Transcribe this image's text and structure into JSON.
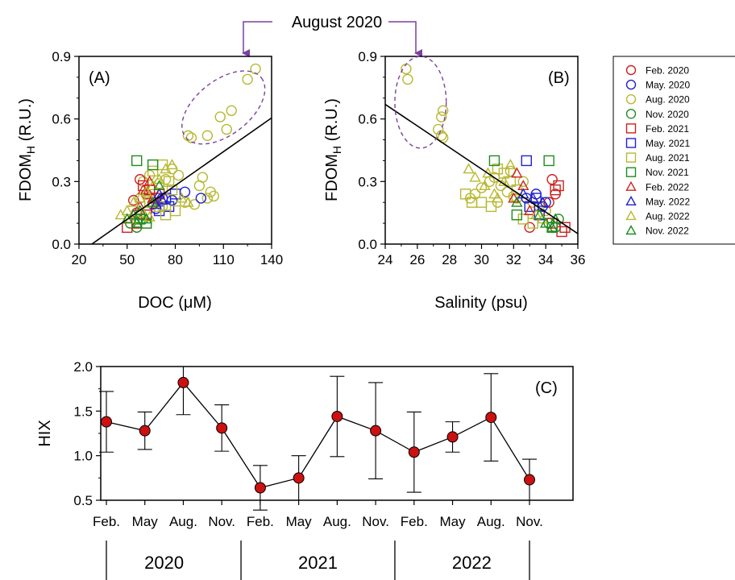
{
  "annotation": {
    "text": "August 2020",
    "color": "#7B3FA0"
  },
  "legend": [
    {
      "label": "Feb. 2020",
      "marker": "circle",
      "color": "#CC2222"
    },
    {
      "label": "May. 2020",
      "marker": "circle",
      "color": "#2222CC"
    },
    {
      "label": "Aug. 2020",
      "marker": "circle",
      "color": "#B8B832"
    },
    {
      "label": "Nov. 2020",
      "marker": "circle",
      "color": "#1E8C1E"
    },
    {
      "label": "Feb. 2021",
      "marker": "square",
      "color": "#CC2222"
    },
    {
      "label": "May. 2021",
      "marker": "square",
      "color": "#2222CC"
    },
    {
      "label": "Aug. 2021",
      "marker": "square",
      "color": "#B8B832"
    },
    {
      "label": "Nov. 2021",
      "marker": "square",
      "color": "#1E8C1E"
    },
    {
      "label": "Feb. 2022",
      "marker": "triangle",
      "color": "#CC2222"
    },
    {
      "label": "May. 2022",
      "marker": "triangle",
      "color": "#2222CC"
    },
    {
      "label": "Aug. 2022",
      "marker": "triangle",
      "color": "#B8B832"
    },
    {
      "label": "Nov. 2022",
      "marker": "triangle",
      "color": "#1E8C1E"
    }
  ],
  "chart_data": [
    {
      "panel": "(A)",
      "type": "scatter",
      "xlabel": "DOC (μM)",
      "ylabel_main": "FDOM",
      "ylabel_sub": "H",
      "ylabel_tail": " (R.U.)",
      "xlim": [
        20,
        140
      ],
      "ylim": [
        0,
        0.9
      ],
      "xticks": [
        20,
        50,
        80,
        110,
        140
      ],
      "yticks": [
        "0.0",
        "0.3",
        "0.6",
        "0.9"
      ],
      "regression": {
        "x": [
          28,
          140
        ],
        "y": [
          0.0,
          0.605
        ]
      },
      "highlight_ellipse": {
        "cx": 110,
        "cy": 0.655,
        "rx": 30,
        "ry": 0.13,
        "angle_deg": -38
      },
      "series": [
        {
          "label": "Aug. 2020",
          "marker": "circle",
          "color": "#B8B832",
          "points": [
            [
              130,
              0.84
            ],
            [
              125,
              0.79
            ],
            [
              115,
              0.64
            ],
            [
              108,
              0.61
            ],
            [
              112,
              0.55
            ],
            [
              100,
              0.52
            ],
            [
              88,
              0.52
            ],
            [
              90,
              0.51
            ],
            [
              97,
              0.32
            ],
            [
              95,
              0.28
            ],
            [
              102,
              0.25
            ],
            [
              104,
              0.23
            ],
            [
              100,
              0.22
            ],
            [
              82,
              0.33
            ],
            [
              78,
              0.36
            ],
            [
              74,
              0.31
            ],
            [
              70,
              0.29
            ],
            [
              66,
              0.26
            ],
            [
              62,
              0.24
            ],
            [
              86,
              0.2
            ],
            [
              92,
              0.19
            ],
            [
              72,
              0.18
            ],
            [
              68,
              0.2
            ],
            [
              58,
              0.22
            ],
            [
              60,
              0.3
            ],
            [
              64,
              0.33
            ]
          ]
        },
        {
          "label": "Feb. 2020",
          "marker": "circle",
          "color": "#CC2222",
          "points": [
            [
              58,
              0.31
            ],
            [
              54,
              0.21
            ],
            [
              62,
              0.24
            ],
            [
              66,
              0.19
            ],
            [
              56,
              0.15
            ]
          ]
        },
        {
          "label": "May. 2020",
          "marker": "circle",
          "color": "#2222CC",
          "points": [
            [
              96,
              0.22
            ],
            [
              86,
              0.25
            ],
            [
              78,
              0.21
            ],
            [
              72,
              0.22
            ],
            [
              68,
              0.17
            ]
          ]
        },
        {
          "label": "Nov. 2020",
          "marker": "circle",
          "color": "#1E8C1E",
          "points": [
            [
              52,
              0.1
            ],
            [
              56,
              0.08
            ],
            [
              60,
              0.12
            ],
            [
              58,
              0.14
            ]
          ]
        },
        {
          "label": "Feb. 2021",
          "marker": "square",
          "color": "#CC2222",
          "points": [
            [
              50,
              0.08
            ],
            [
              56,
              0.1
            ],
            [
              62,
              0.14
            ],
            [
              68,
              0.22
            ],
            [
              64,
              0.26
            ],
            [
              60,
              0.28
            ],
            [
              70,
              0.24
            ]
          ]
        },
        {
          "label": "May. 2021",
          "marker": "square",
          "color": "#2222CC",
          "points": [
            [
              74,
              0.22
            ],
            [
              80,
              0.24
            ],
            [
              76,
              0.18
            ],
            [
              70,
              0.16
            ]
          ]
        },
        {
          "label": "Aug. 2021",
          "marker": "square",
          "color": "#B8B832",
          "points": [
            [
              66,
              0.35
            ],
            [
              72,
              0.38
            ],
            [
              76,
              0.3
            ],
            [
              78,
              0.26
            ],
            [
              64,
              0.2
            ],
            [
              70,
              0.18
            ],
            [
              80,
              0.16
            ],
            [
              74,
              0.14
            ],
            [
              58,
              0.12
            ],
            [
              62,
              0.1
            ]
          ]
        },
        {
          "label": "Nov. 2021",
          "marker": "square",
          "color": "#1E8C1E",
          "points": [
            [
              56,
              0.4
            ],
            [
              66,
              0.38
            ],
            [
              62,
              0.1
            ],
            [
              58,
              0.12
            ]
          ]
        },
        {
          "label": "Feb. 2022",
          "marker": "triangle",
          "color": "#CC2222",
          "points": [
            [
              60,
              0.26
            ],
            [
              64,
              0.3
            ],
            [
              66,
              0.22
            ],
            [
              58,
              0.18
            ]
          ]
        },
        {
          "label": "May. 2022",
          "marker": "triangle",
          "color": "#2222CC",
          "points": [
            [
              70,
              0.24
            ],
            [
              72,
              0.21
            ],
            [
              68,
              0.19
            ]
          ]
        },
        {
          "label": "Aug. 2022",
          "marker": "triangle",
          "color": "#B8B832",
          "points": [
            [
              46,
              0.14
            ],
            [
              50,
              0.16
            ],
            [
              54,
              0.2
            ],
            [
              58,
              0.22
            ],
            [
              62,
              0.25
            ],
            [
              66,
              0.28
            ],
            [
              70,
              0.31
            ],
            [
              74,
              0.36
            ],
            [
              78,
              0.38
            ],
            [
              84,
              0.22
            ],
            [
              88,
              0.2
            ],
            [
              60,
              0.15
            ],
            [
              64,
              0.13
            ],
            [
              52,
              0.12
            ]
          ]
        },
        {
          "label": "Nov. 2022",
          "marker": "triangle",
          "color": "#1E8C1E",
          "points": [
            [
              50,
              0.12
            ],
            [
              54,
              0.14
            ],
            [
              58,
              0.16
            ],
            [
              56,
              0.1
            ],
            [
              62,
              0.12
            ],
            [
              66,
              0.2
            ],
            [
              70,
              0.28
            ]
          ]
        }
      ]
    },
    {
      "panel": "(B)",
      "type": "scatter",
      "xlabel": "Salinity (psu)",
      "ylabel_main": "FDOM",
      "ylabel_sub": "H",
      "ylabel_tail": " (R.U.)",
      "xlim": [
        24,
        36
      ],
      "ylim": [
        0,
        0.9
      ],
      "xticks": [
        24,
        26,
        28,
        30,
        32,
        34,
        36
      ],
      "yticks": [
        "0.0",
        "0.3",
        "0.6",
        "0.9"
      ],
      "regression": {
        "x": [
          24,
          36
        ],
        "y": [
          0.67,
          0.05
        ]
      },
      "highlight_ellipse": {
        "cx": 26.2,
        "cy": 0.68,
        "rx": 1.6,
        "ry": 0.22,
        "angle_deg": 0
      },
      "series": [
        {
          "label": "Aug. 2020",
          "marker": "circle",
          "color": "#B8B832",
          "points": [
            [
              25.3,
              0.84
            ],
            [
              25.4,
              0.79
            ],
            [
              27.6,
              0.64
            ],
            [
              27.5,
              0.61
            ],
            [
              27.3,
              0.55
            ],
            [
              27.5,
              0.52
            ],
            [
              27.6,
              0.51
            ],
            [
              30.8,
              0.32
            ],
            [
              31.2,
              0.28
            ],
            [
              31.6,
              0.25
            ],
            [
              32.0,
              0.23
            ],
            [
              32.2,
              0.22
            ],
            [
              30.5,
              0.3
            ],
            [
              30.0,
              0.27
            ],
            [
              29.6,
              0.24
            ],
            [
              29.3,
              0.22
            ],
            [
              31.0,
              0.2
            ],
            [
              33.2,
              0.2
            ],
            [
              33.6,
              0.18
            ],
            [
              34.0,
              0.16
            ],
            [
              31.8,
              0.35
            ],
            [
              32.6,
              0.3
            ]
          ]
        },
        {
          "label": "Feb. 2020",
          "marker": "circle",
          "color": "#CC2222",
          "points": [
            [
              34.4,
              0.31
            ],
            [
              34.6,
              0.24
            ],
            [
              34.2,
              0.2
            ],
            [
              33.0,
              0.08
            ]
          ]
        },
        {
          "label": "May. 2020",
          "marker": "circle",
          "color": "#2222CC",
          "points": [
            [
              32.8,
              0.22
            ],
            [
              33.4,
              0.24
            ],
            [
              33.8,
              0.18
            ],
            [
              34.0,
              0.2
            ]
          ]
        },
        {
          "label": "Nov. 2020",
          "marker": "circle",
          "color": "#1E8C1E",
          "points": [
            [
              34.2,
              0.1
            ],
            [
              34.6,
              0.08
            ],
            [
              34.8,
              0.12
            ]
          ]
        },
        {
          "label": "Feb. 2021",
          "marker": "square",
          "color": "#CC2222",
          "points": [
            [
              34.8,
              0.28
            ],
            [
              34.6,
              0.26
            ],
            [
              35.0,
              0.06
            ],
            [
              35.2,
              0.08
            ],
            [
              34.4,
              0.1
            ]
          ]
        },
        {
          "label": "May. 2021",
          "marker": "square",
          "color": "#2222CC",
          "points": [
            [
              32.8,
              0.4
            ],
            [
              33.4,
              0.22
            ],
            [
              33.0,
              0.18
            ],
            [
              33.6,
              0.14
            ]
          ]
        },
        {
          "label": "Aug. 2021",
          "marker": "square",
          "color": "#B8B832",
          "points": [
            [
              31.0,
              0.36
            ],
            [
              31.4,
              0.34
            ],
            [
              31.8,
              0.3
            ],
            [
              32.2,
              0.26
            ],
            [
              29.0,
              0.24
            ],
            [
              29.4,
              0.2
            ],
            [
              30.0,
              0.2
            ],
            [
              30.6,
              0.18
            ],
            [
              32.6,
              0.12
            ],
            [
              33.2,
              0.1
            ]
          ]
        },
        {
          "label": "Nov. 2021",
          "marker": "square",
          "color": "#1E8C1E",
          "points": [
            [
              30.8,
              0.4
            ],
            [
              34.2,
              0.4
            ],
            [
              32.2,
              0.14
            ],
            [
              34.4,
              0.08
            ]
          ]
        },
        {
          "label": "Feb. 2022",
          "marker": "triangle",
          "color": "#CC2222",
          "points": [
            [
              32.2,
              0.34
            ],
            [
              32.6,
              0.28
            ],
            [
              32.0,
              0.22
            ],
            [
              33.0,
              0.16
            ]
          ]
        },
        {
          "label": "May. 2022",
          "marker": "triangle",
          "color": "#2222CC",
          "points": [
            [
              32.6,
              0.24
            ],
            [
              33.2,
              0.22
            ],
            [
              33.8,
              0.2
            ]
          ]
        },
        {
          "label": "Aug. 2022",
          "marker": "triangle",
          "color": "#B8B832",
          "points": [
            [
              29.2,
              0.36
            ],
            [
              29.6,
              0.32
            ],
            [
              30.2,
              0.28
            ],
            [
              30.8,
              0.24
            ],
            [
              31.4,
              0.3
            ],
            [
              31.8,
              0.38
            ],
            [
              30.4,
              0.34
            ],
            [
              31.0,
              0.22
            ],
            [
              33.4,
              0.14
            ],
            [
              33.8,
              0.12
            ]
          ]
        },
        {
          "label": "Nov. 2022",
          "marker": "triangle",
          "color": "#1E8C1E",
          "points": [
            [
              32.2,
              0.2
            ],
            [
              33.6,
              0.14
            ],
            [
              34.0,
              0.1
            ],
            [
              34.4,
              0.08
            ],
            [
              34.6,
              0.12
            ]
          ]
        }
      ]
    },
    {
      "panel": "(C)",
      "type": "line",
      "ylabel": "HIX",
      "ylim": [
        0.5,
        2.0
      ],
      "yticks": [
        "0.5",
        "1.0",
        "1.5",
        "2.0"
      ],
      "categories": [
        "Feb.",
        "May",
        "Aug.",
        "Nov.",
        "Feb.",
        "May",
        "Aug.",
        "Nov.",
        "Feb.",
        "May",
        "Aug.",
        "Nov."
      ],
      "years": [
        "2020",
        "2021",
        "2022"
      ],
      "series": [
        {
          "values": [
            1.38,
            1.28,
            1.82,
            1.31,
            0.64,
            0.75,
            1.44,
            1.28,
            1.04,
            1.21,
            1.43,
            0.73
          ],
          "errors": [
            0.34,
            0.21,
            0.36,
            0.26,
            0.25,
            0.25,
            0.45,
            0.54,
            0.45,
            0.17,
            0.49,
            0.23
          ],
          "marker_color": "#CC1111"
        }
      ]
    }
  ]
}
